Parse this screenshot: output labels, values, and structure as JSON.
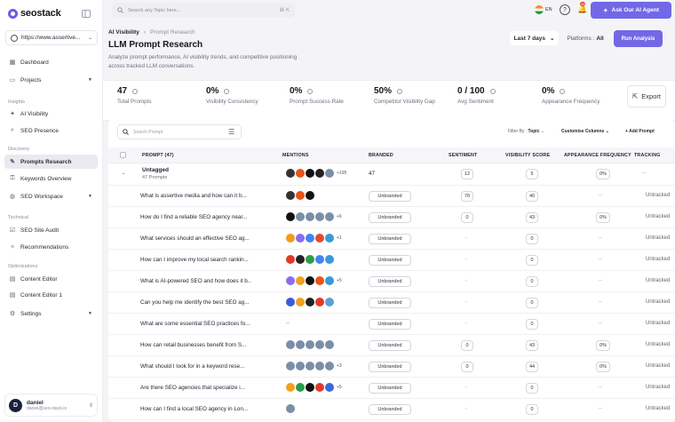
{
  "brand": "seostack",
  "sidebar": {
    "domain": "https://www.assertive...",
    "nav_top": [
      {
        "label": "Dashboard",
        "icon": "grid-icon"
      },
      {
        "label": "Projects",
        "icon": "folder-icon",
        "expandable": true
      }
    ],
    "sections": [
      {
        "label": "Insights",
        "items": [
          {
            "label": "AI Visibility",
            "icon": "sparkle-icon"
          },
          {
            "label": "SEO Presence",
            "icon": "search-icon"
          }
        ]
      },
      {
        "label": "Discovery",
        "items": [
          {
            "label": "Prompts Research",
            "icon": "pen-icon",
            "active": true
          },
          {
            "label": "Keywords Overview",
            "icon": "key-icon"
          },
          {
            "label": "SEO Workspace",
            "icon": "globe-icon",
            "expandable": true
          }
        ]
      },
      {
        "label": "Technical",
        "items": [
          {
            "label": "SEO Site Audit",
            "icon": "checklist-icon"
          },
          {
            "label": "Recommendations",
            "icon": "lightbulb-icon"
          }
        ]
      },
      {
        "label": "Optimizations",
        "items": [
          {
            "label": "Content Editor",
            "icon": "doc-icon"
          },
          {
            "label": "Content Editor 1",
            "icon": "doc-icon"
          },
          {
            "label": "Settings",
            "icon": "gear-icon",
            "expandable": true
          }
        ]
      }
    ],
    "user": {
      "initial": "D",
      "name": "daniel",
      "email": "daniel@seo-stack.io"
    }
  },
  "topbar": {
    "search_placeholder": "Search any Topic here...",
    "shortcut": "⌘ K",
    "lang": "EN",
    "notifications": "36",
    "ask_button": "Ask Our AI Agent"
  },
  "page": {
    "breadcrumb": [
      "AI Visibility",
      "Prompt Research"
    ],
    "title": "LLM Prompt Research",
    "description": "Analyze prompt performance, AI visibility trends, and competitive positioning across tracked LLM conversations.",
    "date_range": "Last 7 days",
    "platforms_label": "Platforms :",
    "platforms_value": "All",
    "run_button": "Run Analysis"
  },
  "stats": [
    {
      "value": "47",
      "label": "Total Prompts"
    },
    {
      "value": "0%",
      "label": "Visibility Consistency"
    },
    {
      "value": "0%",
      "label": "Prompt Success Rate"
    },
    {
      "value": "50%",
      "label": "Competitor Visibility Gap"
    },
    {
      "value": "0 / 100",
      "label": "Avg Sentiment"
    },
    {
      "value": "0%",
      "label": "Appearance Frequency"
    }
  ],
  "export_label": "Export",
  "table": {
    "search_placeholder": "Search Prompt",
    "filter_by_label": "Filter By :",
    "filter_by_value": "Topic",
    "customize_columns": "Customise Columns",
    "add_prompt": "Add Prompt",
    "columns": [
      "PROMPT (47)",
      "MENTIONS",
      "BRANDED",
      "SENTIMENT",
      "VISIBILITY SCORE",
      "APPEARANCE FREQUENCY",
      "TRACKING"
    ],
    "group": {
      "name": "Untagged",
      "sub": "47 Prompts",
      "icons": [
        "#333",
        "#e8541c",
        "#111",
        "#222",
        "#7b8ea8"
      ],
      "more": "+195",
      "branded": "47",
      "sentiment": "12",
      "visibility": "5",
      "frequency": "0%",
      "tracking": "--"
    },
    "rows": [
      {
        "prompt": "What is assertive media and how can it b...",
        "icons": [
          "#333",
          "#e8541c",
          "#111"
        ],
        "more": "",
        "branded": "Unbranded",
        "sentiment": "70",
        "visibility": "40",
        "frequency": "--",
        "tracking": "Untracked"
      },
      {
        "prompt": "How do I find a reliable SEO agency near...",
        "icons": [
          "#111",
          "#7b8ea8",
          "#7b8ea8",
          "#7b8ea8",
          "#7b8ea8"
        ],
        "more": "+6",
        "branded": "Unbranded",
        "sentiment": "0",
        "visibility": "43",
        "frequency": "0%",
        "tracking": "Untracked"
      },
      {
        "prompt": "What services should an effective SEO ag...",
        "icons": [
          "#f29a1e",
          "#8b6cf0",
          "#4285f4",
          "#e04a3a",
          "#3a9ad9"
        ],
        "more": "+1",
        "branded": "Unbranded",
        "sentiment": "-",
        "visibility": "0",
        "frequency": "--",
        "tracking": "Untracked"
      },
      {
        "prompt": "How can I improve my local search rankin...",
        "icons": [
          "#e03a2a",
          "#222",
          "#2a9d4a",
          "#4285f4",
          "#3a9ad9"
        ],
        "more": "",
        "branded": "Unbranded",
        "sentiment": "-",
        "visibility": "0",
        "frequency": "--",
        "tracking": "Untracked"
      },
      {
        "prompt": "What is AI-powered SEO and how does it b...",
        "icons": [
          "#8b6cf0",
          "#f2a01e",
          "#111",
          "#e8541c",
          "#3a9ad9"
        ],
        "more": "+5",
        "branded": "Unbranded",
        "sentiment": "-",
        "visibility": "0",
        "frequency": "--",
        "tracking": "Untracked"
      },
      {
        "prompt": "Can you help me identify the best SEO ag...",
        "icons": [
          "#3b5bdb",
          "#f2a01e",
          "#222",
          "#e03a2a",
          "#5aa0d9"
        ],
        "more": "",
        "branded": "Unbranded",
        "sentiment": "-",
        "visibility": "0",
        "frequency": "--",
        "tracking": "Untracked"
      },
      {
        "prompt": "What are some essential SEO practices fo...",
        "icons": [],
        "more": "",
        "empty_mentions": "--",
        "branded": "Unbranded",
        "sentiment": "-",
        "visibility": "0",
        "frequency": "--",
        "tracking": "Untracked"
      },
      {
        "prompt": "How can retail businesses benefit from S...",
        "icons": [
          "#7b8ea8",
          "#7b8ea8",
          "#7b8ea8",
          "#7b8ea8",
          "#7b8ea8"
        ],
        "more": "",
        "branded": "Unbranded",
        "sentiment": "0",
        "visibility": "43",
        "frequency": "0%",
        "tracking": "Untracked"
      },
      {
        "prompt": "What should I look for in a keyword rese...",
        "icons": [
          "#7b8ea8",
          "#7b8ea8",
          "#7b8ea8",
          "#7b8ea8",
          "#7b8ea8"
        ],
        "more": "+3",
        "branded": "Unbranded",
        "sentiment": "0",
        "visibility": "44",
        "frequency": "0%",
        "tracking": "Untracked"
      },
      {
        "prompt": "Are there SEO agencies that specialize i...",
        "icons": [
          "#f2a01e",
          "#2a9d4a",
          "#111",
          "#e03a2a",
          "#3a6ad9"
        ],
        "more": "+5",
        "branded": "Unbranded",
        "sentiment": "-",
        "visibility": "0",
        "frequency": "--",
        "tracking": "Untracked"
      },
      {
        "prompt": "How can I find a local SEO agency in Lon...",
        "icons": [
          "#7b8ea8"
        ],
        "more": "",
        "branded": "Unbranded",
        "sentiment": "-",
        "visibility": "0",
        "frequency": "--",
        "tracking": "Untracked"
      }
    ]
  }
}
